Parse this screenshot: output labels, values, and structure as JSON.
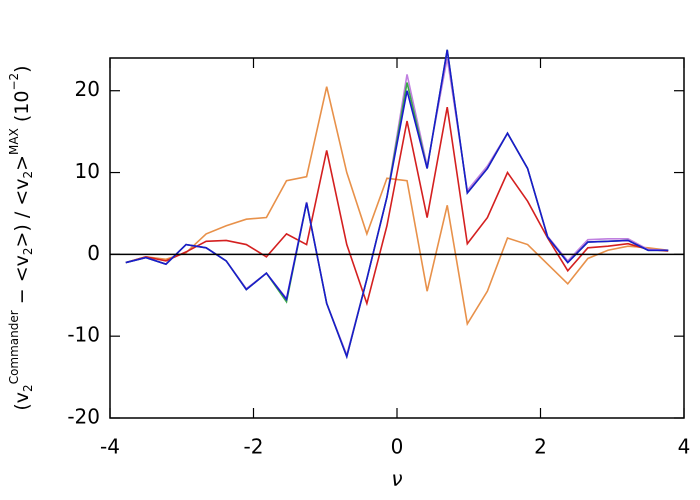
{
  "chart_data": {
    "type": "line",
    "x_label": "ν",
    "y_label_parts": [
      {
        "text": "(v",
        "shift": "base"
      },
      {
        "text": "2",
        "shift": "sub"
      },
      {
        "text": "Commander",
        "shift": "sup"
      },
      {
        "text": " − <v",
        "shift": "base"
      },
      {
        "text": "2",
        "shift": "sub"
      },
      {
        "text": ">) / <v",
        "shift": "base"
      },
      {
        "text": "2",
        "shift": "sub"
      },
      {
        "text": ">",
        "shift": "base"
      },
      {
        "text": "MAX",
        "shift": "sup"
      },
      {
        "text": " (10",
        "shift": "base"
      },
      {
        "text": "−2",
        "shift": "sup"
      },
      {
        "text": ")",
        "shift": "base"
      }
    ],
    "x": [
      -3.78,
      -3.5,
      -3.22,
      -2.94,
      -2.66,
      -2.38,
      -2.1,
      -1.82,
      -1.54,
      -1.26,
      -0.98,
      -0.7,
      -0.42,
      -0.14,
      0.14,
      0.42,
      0.7,
      0.98,
      1.26,
      1.54,
      1.82,
      2.1,
      2.38,
      2.66,
      2.94,
      3.22,
      3.5,
      3.78
    ],
    "series": [
      {
        "name": "orange",
        "color": "#e8914a",
        "values": [
          -1,
          -0.3,
          -0.6,
          0.2,
          2.5,
          3.5,
          4.3,
          4.5,
          9,
          9.5,
          20.5,
          10,
          2.5,
          9.3,
          9,
          -4.5,
          6,
          -8.5,
          -4.5,
          2,
          1.2,
          -1.2,
          -3.6,
          -0.5,
          0.5,
          1,
          0.8,
          0.5
        ]
      },
      {
        "name": "red",
        "color": "#d42020",
        "values": [
          -1,
          -0.3,
          -0.8,
          0.3,
          1.6,
          1.7,
          1.2,
          -0.3,
          2.5,
          1.2,
          12.7,
          1.2,
          -6,
          3.5,
          16.3,
          4.5,
          18,
          1.3,
          4.5,
          10,
          6.5,
          2,
          -2,
          0.8,
          1,
          1.3,
          0.6,
          0.4
        ]
      },
      {
        "name": "purple",
        "color": "#c080e0",
        "values": [
          -1,
          -0.4,
          -1.2,
          1.2,
          0.8,
          -0.8,
          -4.2,
          -2.3,
          -5.4,
          6.4,
          -6,
          -12.3,
          -3,
          7,
          22,
          10.8,
          24,
          7.8,
          10.8,
          14.8,
          10.5,
          2.2,
          -0.8,
          1.8,
          1.9,
          1.9,
          0.6,
          0.5
        ]
      },
      {
        "name": "green",
        "color": "#3aa84a",
        "values": [
          -1,
          -0.4,
          -1.2,
          1.2,
          0.8,
          -0.8,
          -4.3,
          -2.3,
          -5.8,
          6.3,
          -6,
          -12.5,
          -3,
          7,
          21,
          10.5,
          25,
          7.5,
          10.5,
          14.8,
          10.5,
          2.1,
          -1,
          1.5,
          1.6,
          1.7,
          0.5,
          0.5
        ]
      },
      {
        "name": "blue",
        "color": "#1a1acc",
        "values": [
          -1,
          -0.4,
          -1.2,
          1.2,
          0.8,
          -0.8,
          -4.3,
          -2.3,
          -5.5,
          6.3,
          -6,
          -12.5,
          -3,
          7,
          20,
          10.5,
          25,
          7.5,
          10.5,
          14.8,
          10.5,
          2.1,
          -1,
          1.5,
          1.6,
          1.7,
          0.5,
          0.5
        ]
      }
    ],
    "reference_line": 0,
    "xlim": [
      -4,
      4
    ],
    "xticks": [
      -4,
      -2,
      0,
      2,
      4
    ],
    "ylim": [
      -20,
      24
    ],
    "yticks": [
      -20,
      -10,
      0,
      10,
      20
    ],
    "grid": false
  }
}
